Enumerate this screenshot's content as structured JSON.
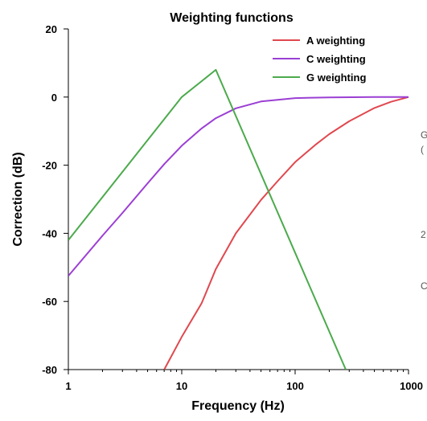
{
  "chart_data": {
    "type": "line",
    "title": "Weighting functions",
    "xlabel": "Frequency (Hz)",
    "ylabel": "Correction (dB)",
    "xscale": "log",
    "xlim": [
      1,
      1000
    ],
    "ylim": [
      -80,
      20
    ],
    "xticks": [
      1,
      10,
      100,
      1000
    ],
    "xtick_labels": [
      "1",
      "10",
      "100",
      "1000"
    ],
    "yticks": [
      -80,
      -60,
      -40,
      -20,
      0,
      20
    ],
    "ytick_labels": [
      "-80",
      "-60",
      "-40",
      "-20",
      "0",
      "20"
    ],
    "grid": false,
    "legend_position": "top-right",
    "series": [
      {
        "name": "A weighting",
        "color": "#e0484e",
        "x": [
          7,
          10,
          15,
          20,
          30,
          50,
          70,
          100,
          150,
          200,
          300,
          500,
          700,
          1000
        ],
        "y": [
          -80,
          -70.4,
          -60.5,
          -50.5,
          -40,
          -30.2,
          -24.7,
          -19.1,
          -14.1,
          -10.9,
          -7.1,
          -3.2,
          -1.4,
          0
        ]
      },
      {
        "name": "C weighting",
        "color": "#9b3fd4",
        "x": [
          1,
          2,
          3,
          5,
          7,
          10,
          15,
          20,
          30,
          50,
          70,
          100,
          200,
          500,
          1000
        ],
        "y": [
          -52.5,
          -40.7,
          -34,
          -25.3,
          -19.7,
          -14.3,
          -9.2,
          -6.2,
          -3.3,
          -1.3,
          -0.8,
          -0.3,
          -0.1,
          0,
          0
        ]
      },
      {
        "name": "G weighting",
        "color": "#4caa4c",
        "x": [
          1,
          10,
          20,
          280
        ],
        "y": [
          -42,
          0,
          8,
          -80
        ]
      }
    ]
  },
  "edge_fragments": [
    "G",
    "(",
    "2",
    "C"
  ]
}
